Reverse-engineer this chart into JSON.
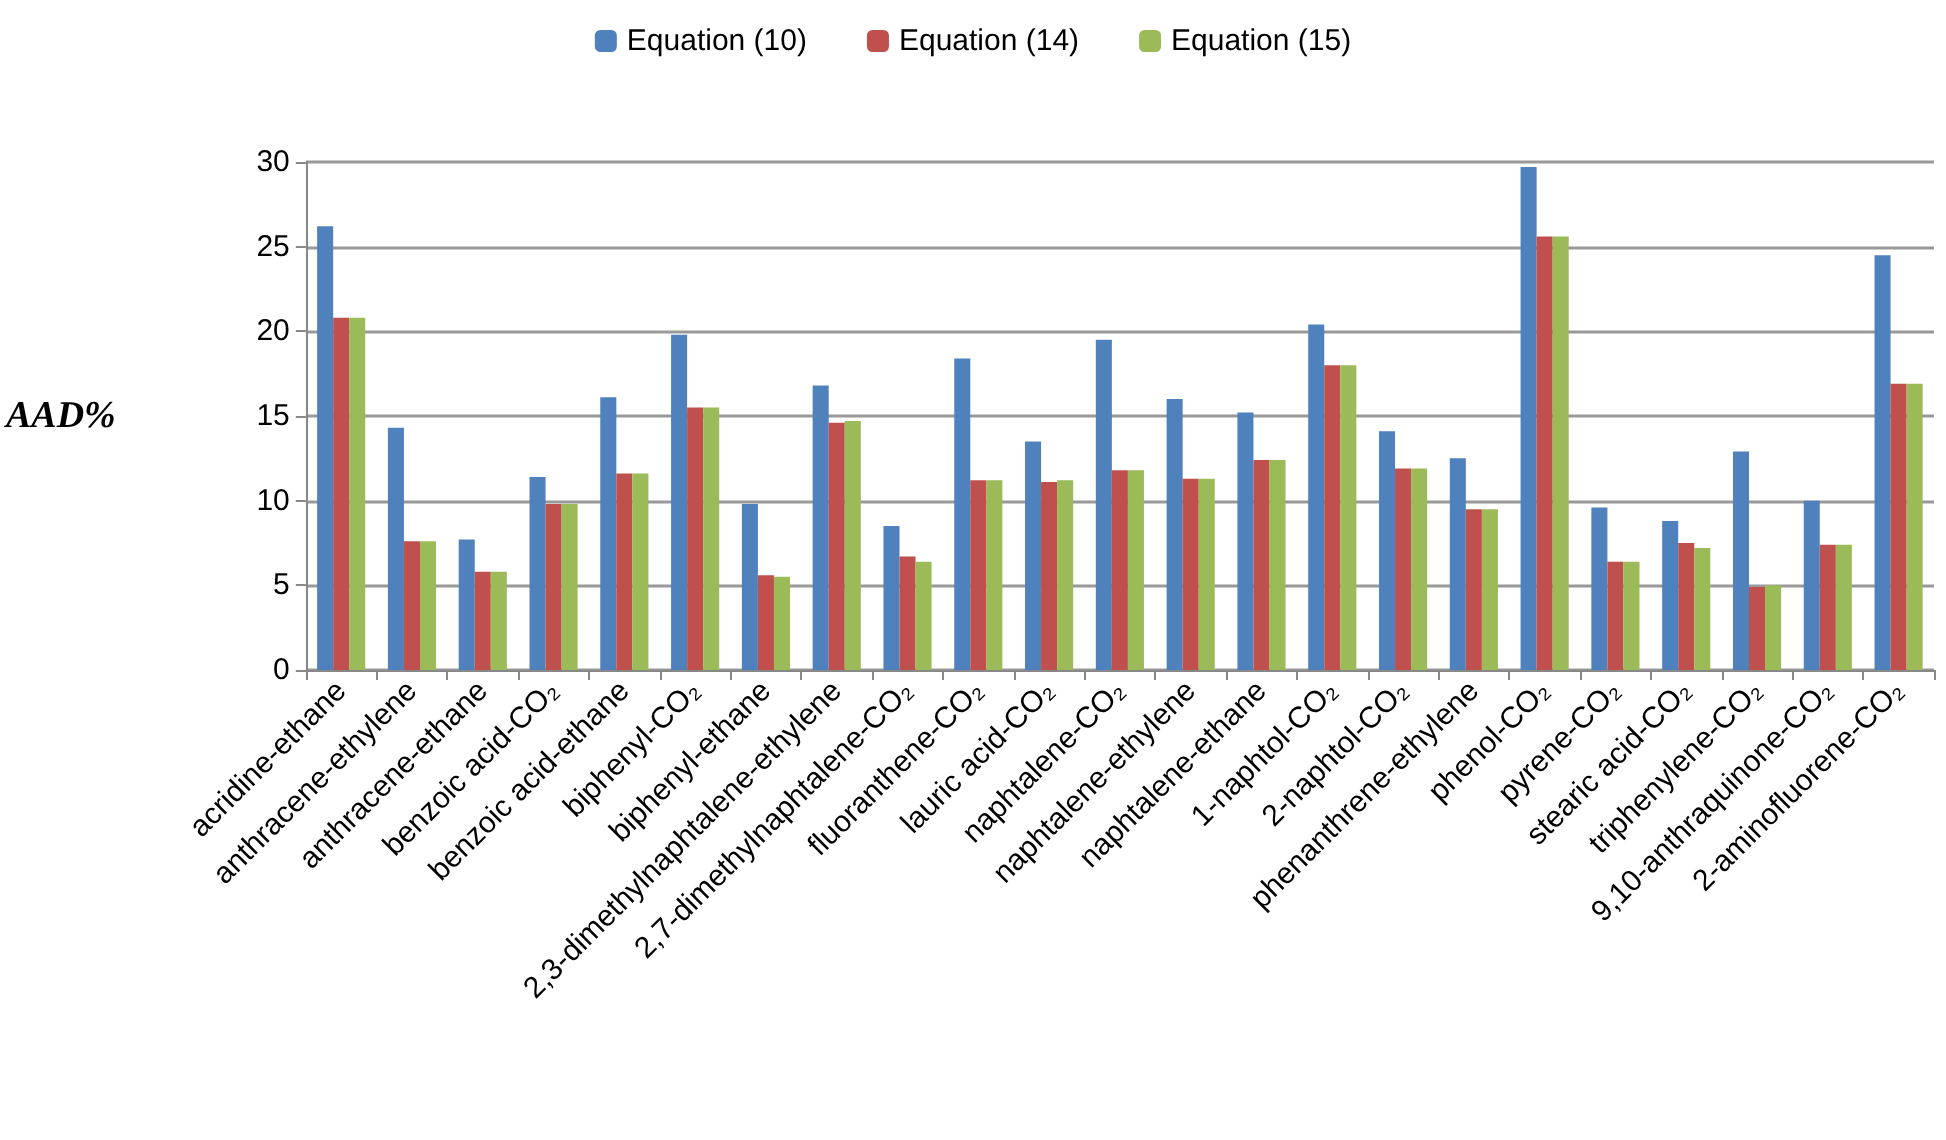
{
  "chart_data": {
    "type": "bar",
    "ylabel": "AAD%",
    "categories": [
      "acridine-ethane",
      "anthracene-ethylene",
      "anthracene-ethane",
      "benzoic acid-CO₂",
      "benzoic acid-ethane",
      "biphenyl-CO₂",
      "biphenyl-ethane",
      "2,3-dimethylnaphtalene-ethylene",
      "2,7-dimethylnaphtalene-CO₂",
      "fluoranthene-CO₂",
      "lauric acid-CO₂",
      "naphtalene-CO₂",
      "naphtalene-ethylene",
      "naphtalene-ethane",
      "1-naphtol-CO₂",
      "2-naphtol-CO₂",
      "phenanthrene-ethylene",
      "phenol-CO₂",
      "pyrene-CO₂",
      "stearic acid-CO₂",
      "triphenylene-CO₂",
      "9,10-anthraquinone-CO₂",
      "2-aminofluorene-CO₂"
    ],
    "series": [
      {
        "name": "Equation (10)",
        "color": "#4f81bd",
        "values": [
          26.2,
          14.3,
          7.7,
          11.4,
          16.1,
          19.8,
          9.8,
          16.8,
          8.5,
          18.4,
          13.5,
          19.5,
          16.0,
          15.2,
          20.4,
          14.1,
          12.5,
          29.7,
          9.6,
          8.8,
          12.9,
          10.0,
          24.5
        ]
      },
      {
        "name": "Equation (14)",
        "color": "#c0504d",
        "values": [
          20.8,
          7.6,
          5.8,
          9.8,
          11.6,
          15.5,
          5.6,
          14.6,
          6.7,
          11.2,
          11.1,
          11.8,
          11.3,
          12.4,
          18.0,
          11.9,
          9.5,
          25.6,
          6.4,
          7.5,
          4.9,
          7.4,
          16.9
        ]
      },
      {
        "name": "Equation (15)",
        "color": "#9bbb59",
        "values": [
          20.8,
          7.6,
          5.8,
          9.8,
          11.6,
          15.5,
          5.5,
          14.7,
          6.4,
          11.2,
          11.2,
          11.8,
          11.3,
          12.4,
          18.0,
          11.9,
          9.5,
          25.6,
          6.4,
          7.2,
          5.0,
          7.4,
          16.9
        ]
      }
    ],
    "ylim": [
      0,
      30
    ],
    "yticks": [
      0,
      5,
      10,
      15,
      20,
      25,
      30
    ],
    "grid": "y",
    "legend": "top"
  }
}
